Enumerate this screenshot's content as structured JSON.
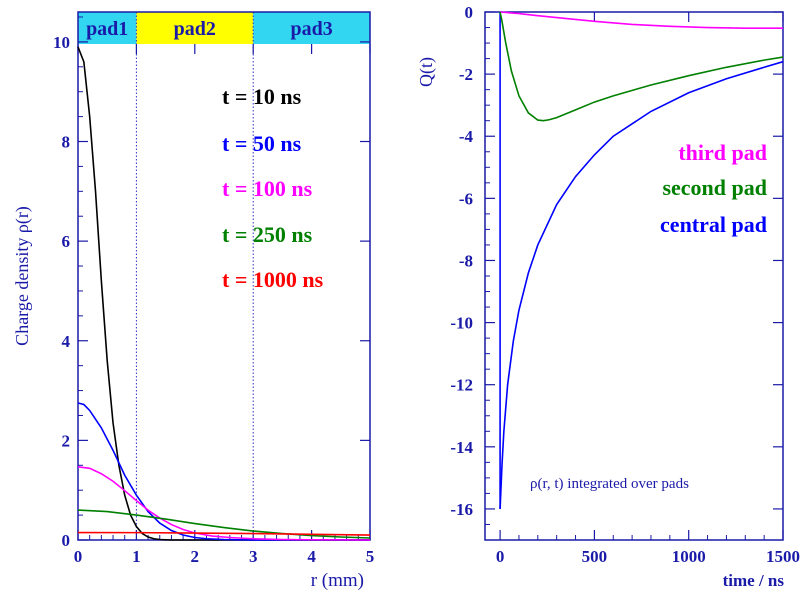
{
  "chart_data": [
    {
      "type": "line",
      "ylabel": "Charge density ρ(r)",
      "xlabel": "r  (mm)",
      "xlim": [
        0,
        5
      ],
      "ylim": [
        0,
        10.6
      ],
      "x_ticks": [
        0,
        1,
        2,
        3,
        4,
        5
      ],
      "y_ticks": [
        0,
        2,
        4,
        6,
        8,
        10
      ],
      "regions": [
        {
          "label": "pad1",
          "range": [
            0,
            1
          ],
          "color": "#33d6f0"
        },
        {
          "label": "pad2",
          "range": [
            1,
            3
          ],
          "color": "#ffff00"
        },
        {
          "label": "pad3",
          "range": [
            3,
            5
          ],
          "color": "#33d6f0"
        }
      ],
      "pad_boundaries": [
        1,
        3
      ],
      "legend": {
        "placement": "top-right"
      },
      "series": [
        {
          "name": "t = 10 ns",
          "color": "#000000",
          "x": [
            0,
            0.1,
            0.2,
            0.3,
            0.4,
            0.5,
            0.6,
            0.7,
            0.8,
            0.9,
            1.0,
            1.1,
            1.2,
            1.3,
            1.4,
            1.5,
            1.6,
            2.0,
            5.0
          ],
          "y": [
            9.9,
            9.6,
            8.5,
            7.0,
            5.2,
            3.6,
            2.35,
            1.5,
            0.9,
            0.5,
            0.27,
            0.13,
            0.06,
            0.025,
            0.01,
            0.004,
            0.0,
            0.0,
            0.0
          ]
        },
        {
          "name": "t = 50 ns",
          "color": "#0000ff",
          "x": [
            0,
            0.1,
            0.2,
            0.4,
            0.6,
            0.8,
            1.0,
            1.2,
            1.4,
            1.6,
            1.8,
            2.0,
            2.2,
            2.5,
            3.0,
            5.0
          ],
          "y": [
            2.75,
            2.72,
            2.6,
            2.25,
            1.8,
            1.3,
            0.9,
            0.57,
            0.34,
            0.19,
            0.1,
            0.05,
            0.025,
            0.01,
            0.0,
            0.0
          ]
        },
        {
          "name": "t = 100 ns",
          "color": "#ff00ff",
          "x": [
            0,
            0.2,
            0.4,
            0.6,
            0.8,
            1.0,
            1.2,
            1.4,
            1.6,
            1.8,
            2.0,
            2.3,
            2.6,
            3.0,
            3.5,
            4.0,
            5.0
          ],
          "y": [
            1.47,
            1.44,
            1.33,
            1.18,
            0.99,
            0.79,
            0.6,
            0.44,
            0.31,
            0.21,
            0.14,
            0.08,
            0.05,
            0.025,
            0.01,
            0.005,
            0.0
          ]
        },
        {
          "name": "t = 250 ns",
          "color": "#008000",
          "x": [
            0,
            0.5,
            1.0,
            1.5,
            2.0,
            2.5,
            3.0,
            3.5,
            4.0,
            4.5,
            5.0
          ],
          "y": [
            0.6,
            0.57,
            0.5,
            0.42,
            0.33,
            0.25,
            0.18,
            0.13,
            0.09,
            0.06,
            0.04
          ]
        },
        {
          "name": "t = 1000 ns",
          "color": "#ff0000",
          "x": [
            0,
            1.0,
            2.0,
            3.0,
            4.0,
            5.0
          ],
          "y": [
            0.15,
            0.148,
            0.14,
            0.13,
            0.115,
            0.1
          ]
        }
      ]
    },
    {
      "type": "line",
      "ylabel": "Q(t)",
      "xlabel": "time / ns",
      "xlim": [
        -80,
        1500
      ],
      "ylim": [
        -17,
        0
      ],
      "x_ticks": [
        0,
        500,
        1000,
        1500
      ],
      "y_ticks": [
        0,
        -2,
        -4,
        -6,
        -8,
        -10,
        -12,
        -14,
        -16
      ],
      "annotation": "ρ(r, t) integrated  over pads",
      "legend": {
        "placement": "top-right"
      },
      "series": [
        {
          "name": "third pad",
          "color": "#ff00ff",
          "x": [
            0,
            100,
            200,
            300,
            500,
            700,
            900,
            1100,
            1300,
            1500
          ],
          "y": [
            0,
            -0.05,
            -0.12,
            -0.18,
            -0.3,
            -0.4,
            -0.46,
            -0.5,
            -0.52,
            -0.52
          ]
        },
        {
          "name": "second pad",
          "color": "#008000",
          "x": [
            0,
            10,
            30,
            60,
            100,
            150,
            200,
            230,
            260,
            300,
            400,
            500,
            600,
            800,
            1000,
            1200,
            1400,
            1500
          ],
          "y": [
            0,
            -0.3,
            -1.0,
            -1.9,
            -2.7,
            -3.25,
            -3.48,
            -3.5,
            -3.47,
            -3.4,
            -3.15,
            -2.9,
            -2.7,
            -2.35,
            -2.05,
            -1.78,
            -1.55,
            -1.45
          ]
        },
        {
          "name": "central pad",
          "color": "#0000ff",
          "x": [
            0,
            5,
            10,
            20,
            40,
            70,
            100,
            150,
            200,
            300,
            400,
            500,
            600,
            800,
            1000,
            1200,
            1400,
            1500
          ],
          "y": [
            -16.0,
            -15.3,
            -14.6,
            -13.5,
            -12.0,
            -10.6,
            -9.6,
            -8.4,
            -7.5,
            -6.2,
            -5.3,
            -4.6,
            -4.0,
            -3.2,
            -2.6,
            -2.15,
            -1.78,
            -1.6
          ]
        }
      ]
    }
  ]
}
